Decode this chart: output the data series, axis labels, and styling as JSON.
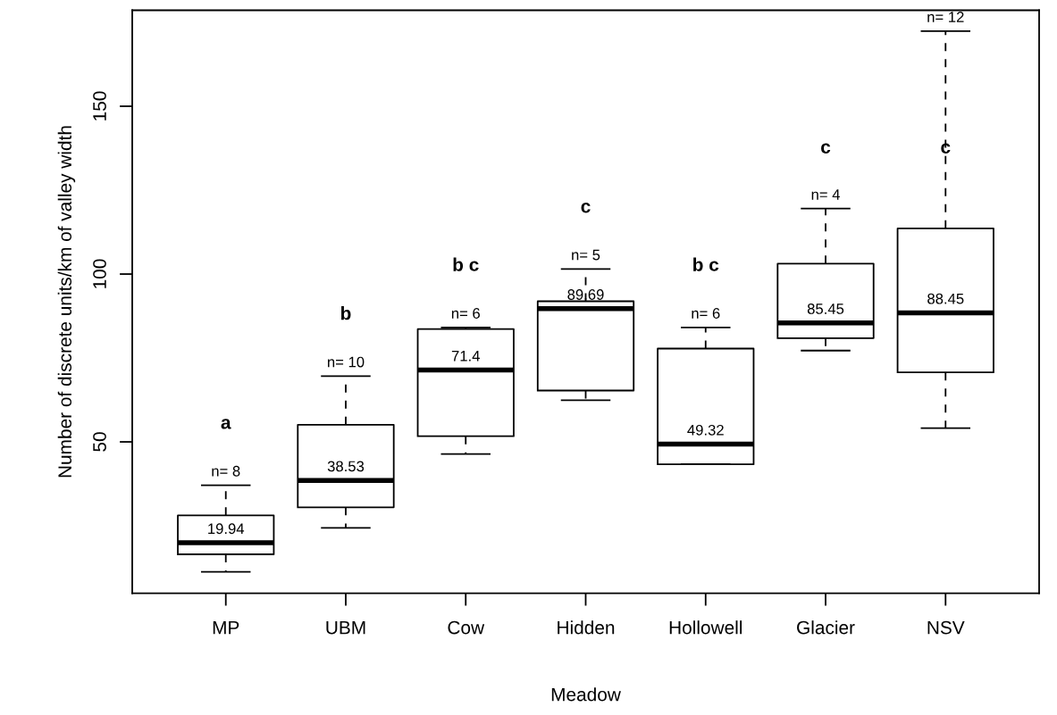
{
  "chart_data": {
    "type": "box",
    "xlabel": "Meadow",
    "ylabel": "Number of discrete units/km of valley width",
    "categories": [
      "MP",
      "UBM",
      "Cow",
      "Hidden",
      "Hollowell",
      "Glacier",
      "NSV"
    ],
    "boxes": [
      {
        "low": 11.3,
        "q1": 16.5,
        "median": 19.94,
        "q3": 28.1,
        "high": 37.1
      },
      {
        "low": 24.4,
        "q1": 30.5,
        "median": 38.53,
        "q3": 55.1,
        "high": 69.6
      },
      {
        "low": 46.4,
        "q1": 51.7,
        "median": 71.4,
        "q3": 83.6,
        "high": 84.1
      },
      {
        "low": 62.4,
        "q1": 65.3,
        "median": 89.69,
        "q3": 91.9,
        "high": 101.5
      },
      {
        "low": 43.3,
        "q1": 43.3,
        "median": 49.32,
        "q3": 77.8,
        "high": 84.1
      },
      {
        "low": 77.2,
        "q1": 80.9,
        "median": 85.45,
        "q3": 103.1,
        "high": 119.5
      },
      {
        "low": 54.1,
        "q1": 70.7,
        "median": 88.45,
        "q3": 113.6,
        "high": 172.4
      }
    ],
    "color": "#000000",
    "line_style": "dashed",
    "ylim": [
      4.9,
      178.6
    ],
    "yticks": [
      50,
      100,
      150
    ],
    "grid": false,
    "annotations": [
      "19.94",
      "38.53",
      "71.4",
      "89.69",
      "49.32",
      "85.45",
      "88.45",
      "n= 8",
      "n= 10",
      "n= 6",
      "n= 5",
      "n= 6",
      "n= 4",
      "n= 12",
      "a",
      "b",
      "b c",
      "c",
      "b c",
      "c",
      "c"
    ]
  }
}
